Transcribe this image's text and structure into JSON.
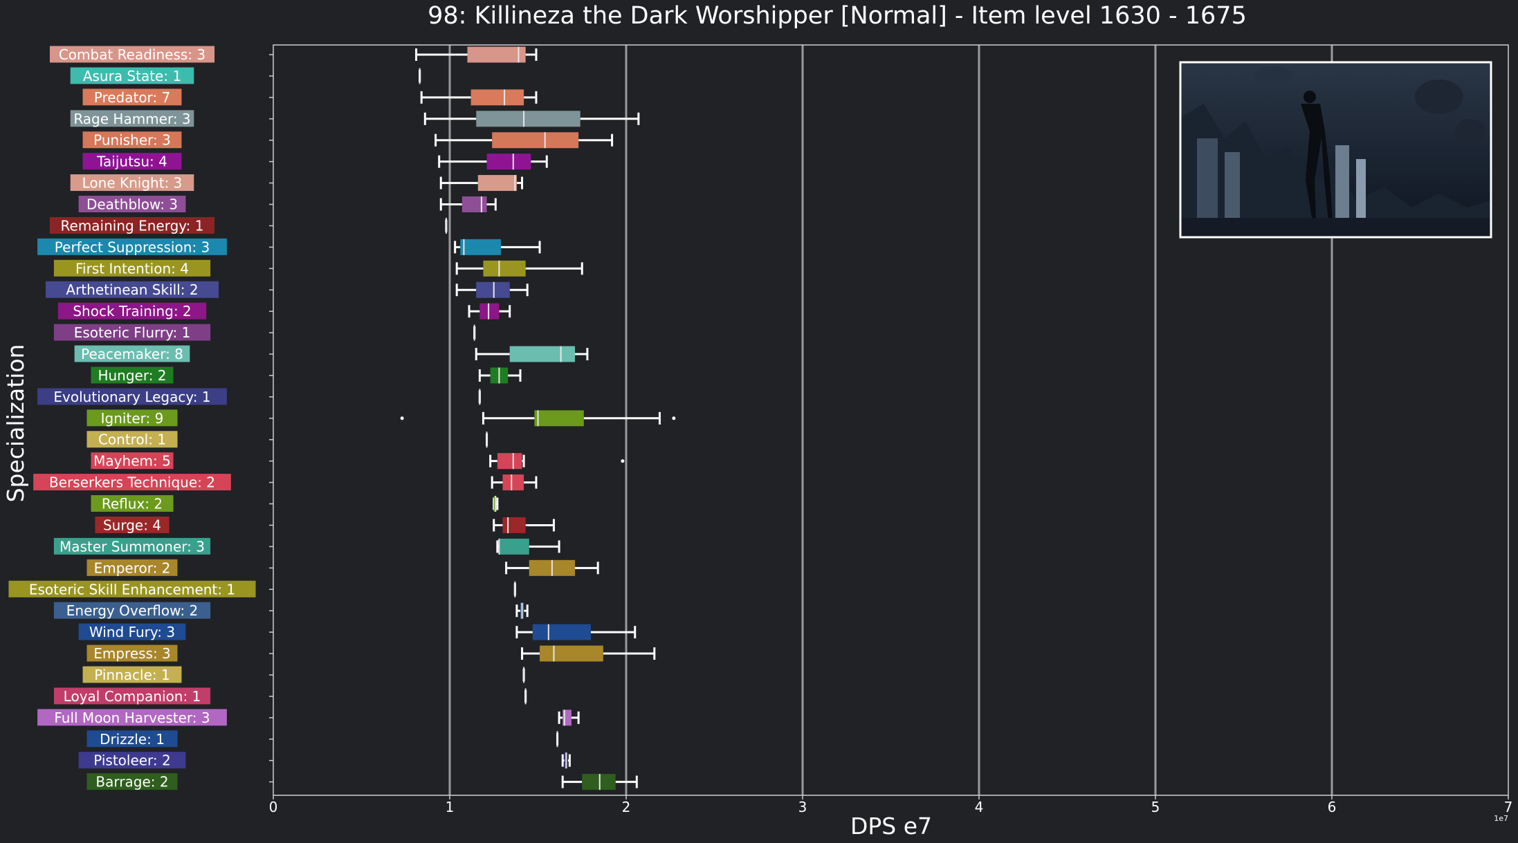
{
  "chart_data": {
    "type": "boxplot",
    "orientation": "horizontal",
    "title": "98: Killineza the Dark Worshipper [Normal] - Item level 1630 - 1675",
    "xlabel": "DPS e7",
    "ylabel": "Specialization",
    "x_offset_text": "1e7",
    "xlim": [
      0,
      70000000
    ],
    "x_ticks": [
      0,
      10000000,
      20000000,
      30000000,
      40000000,
      50000000,
      60000000,
      70000000
    ],
    "x_tick_labels": [
      "0",
      "1",
      "2",
      "3",
      "4",
      "5",
      "6",
      "7"
    ],
    "grid": "vertical",
    "inset_image": "boss-screenshot",
    "series": [
      {
        "label": "Combat Readiness: 3",
        "color": "#d8958a",
        "whislo": 8100000,
        "q1": 11000000,
        "med": 13900000,
        "q3": 14300000,
        "whishi": 14900000,
        "fliers": []
      },
      {
        "label": "Asura State: 1",
        "color": "#3dbcae",
        "whislo": 8300000,
        "q1": 8300000,
        "med": 8300000,
        "q3": 8300000,
        "whishi": 8300000,
        "fliers": []
      },
      {
        "label": "Predator: 7",
        "color": "#d97a5b",
        "whislo": 8400000,
        "q1": 11200000,
        "med": 13100000,
        "q3": 14200000,
        "whishi": 14900000,
        "fliers": []
      },
      {
        "label": "Rage Hammer: 3",
        "color": "#7f9499",
        "whislo": 8600000,
        "q1": 11500000,
        "med": 14200000,
        "q3": 17400000,
        "whishi": 20700000,
        "fliers": []
      },
      {
        "label": "Punisher: 3",
        "color": "#d57759",
        "whislo": 9200000,
        "q1": 12400000,
        "med": 15400000,
        "q3": 17300000,
        "whishi": 19200000,
        "fliers": []
      },
      {
        "label": "Taijutsu: 4",
        "color": "#8f1494",
        "whislo": 9400000,
        "q1": 12100000,
        "med": 13600000,
        "q3": 14600000,
        "whishi": 15500000,
        "fliers": []
      },
      {
        "label": "Lone Knight: 3",
        "color": "#d89a8a",
        "whislo": 9500000,
        "q1": 11600000,
        "med": 13700000,
        "q3": 13800000,
        "whishi": 14100000,
        "fliers": []
      },
      {
        "label": "Deathblow: 3",
        "color": "#8e4f96",
        "whislo": 9500000,
        "q1": 10700000,
        "med": 11800000,
        "q3": 12100000,
        "whishi": 12600000,
        "fliers": []
      },
      {
        "label": "Remaining Energy: 1",
        "color": "#8b2424",
        "whislo": 9800000,
        "q1": 9800000,
        "med": 9800000,
        "q3": 9800000,
        "whishi": 9800000,
        "fliers": []
      },
      {
        "label": "Perfect Suppression: 3",
        "color": "#1c88ad",
        "whislo": 10300000,
        "q1": 10600000,
        "med": 10800000,
        "q3": 12900000,
        "whishi": 15100000,
        "fliers": []
      },
      {
        "label": "First Intention: 4",
        "color": "#9a9520",
        "whislo": 10400000,
        "q1": 11900000,
        "med": 12800000,
        "q3": 14300000,
        "whishi": 17500000,
        "fliers": []
      },
      {
        "label": "Arthetinean Skill: 2",
        "color": "#464a91",
        "whislo": 10400000,
        "q1": 11500000,
        "med": 12500000,
        "q3": 13400000,
        "whishi": 14400000,
        "fliers": []
      },
      {
        "label": "Shock Training: 2",
        "color": "#8d1688",
        "whislo": 11100000,
        "q1": 11700000,
        "med": 12200000,
        "q3": 12800000,
        "whishi": 13400000,
        "fliers": []
      },
      {
        "label": "Esoteric Flurry: 1",
        "color": "#7f3f86",
        "whislo": 11400000,
        "q1": 11400000,
        "med": 11400000,
        "q3": 11400000,
        "whishi": 11400000,
        "fliers": []
      },
      {
        "label": "Peacemaker: 8",
        "color": "#6bbdb0",
        "whislo": 11500000,
        "q1": 13400000,
        "med": 16300000,
        "q3": 17100000,
        "whishi": 17800000,
        "fliers": []
      },
      {
        "label": "Hunger: 2",
        "color": "#1f7d21",
        "whislo": 11700000,
        "q1": 12300000,
        "med": 12800000,
        "q3": 13300000,
        "whishi": 14000000,
        "fliers": []
      },
      {
        "label": "Evolutionary Legacy: 1",
        "color": "#3c3e86",
        "whislo": 11700000,
        "q1": 11700000,
        "med": 11700000,
        "q3": 11700000,
        "whishi": 11700000,
        "fliers": []
      },
      {
        "label": "Igniter: 9",
        "color": "#6b9a1c",
        "whislo": 11900000,
        "q1": 14800000,
        "med": 15000000,
        "q3": 17600000,
        "whishi": 21900000,
        "fliers": [
          7300000,
          22700000
        ]
      },
      {
        "label": "Control: 1",
        "color": "#c4b050",
        "whislo": 12100000,
        "q1": 12100000,
        "med": 12100000,
        "q3": 12100000,
        "whishi": 12100000,
        "fliers": []
      },
      {
        "label": "Mayhem: 5",
        "color": "#d54457",
        "whislo": 12300000,
        "q1": 12700000,
        "med": 13600000,
        "q3": 14100000,
        "whishi": 14200000,
        "fliers": [
          19800000
        ]
      },
      {
        "label": "Berserkers Technique: 2",
        "color": "#d54457",
        "whislo": 12400000,
        "q1": 13000000,
        "med": 13500000,
        "q3": 14200000,
        "whishi": 14900000,
        "fliers": []
      },
      {
        "label": "Reflux: 2",
        "color": "#6b9a1c",
        "whislo": 12500000,
        "q1": 12500000,
        "med": 12600000,
        "q3": 12600000,
        "whishi": 12700000,
        "fliers": []
      },
      {
        "label": "Surge: 4",
        "color": "#9a2828",
        "whislo": 12500000,
        "q1": 13000000,
        "med": 13300000,
        "q3": 14300000,
        "whishi": 15900000,
        "fliers": []
      },
      {
        "label": "Master Summoner: 3",
        "color": "#3aa08e",
        "whislo": 12700000,
        "q1": 12800000,
        "med": 12800000,
        "q3": 14500000,
        "whishi": 16200000,
        "fliers": []
      },
      {
        "label": "Emperor: 2",
        "color": "#a8862a",
        "whislo": 13200000,
        "q1": 14500000,
        "med": 15800000,
        "q3": 17100000,
        "whishi": 18400000,
        "fliers": []
      },
      {
        "label": "Esoteric Skill Enhancement: 1",
        "color": "#9a9520",
        "whislo": 13700000,
        "q1": 13700000,
        "med": 13700000,
        "q3": 13700000,
        "whishi": 13700000,
        "fliers": []
      },
      {
        "label": "Energy Overflow: 2",
        "color": "#3b5f8f",
        "whislo": 13800000,
        "q1": 14000000,
        "med": 14100000,
        "q3": 14200000,
        "whishi": 14400000,
        "fliers": []
      },
      {
        "label": "Wind Fury: 3",
        "color": "#1f4b92",
        "whislo": 13800000,
        "q1": 14700000,
        "med": 15600000,
        "q3": 18000000,
        "whishi": 20500000,
        "fliers": []
      },
      {
        "label": "Empress: 3",
        "color": "#a8862a",
        "whislo": 14100000,
        "q1": 15100000,
        "med": 15900000,
        "q3": 18700000,
        "whishi": 21600000,
        "fliers": []
      },
      {
        "label": "Pinnacle: 1",
        "color": "#c4b050",
        "whislo": 14200000,
        "q1": 14200000,
        "med": 14200000,
        "q3": 14200000,
        "whishi": 14200000,
        "fliers": []
      },
      {
        "label": "Loyal Companion: 1",
        "color": "#c23d6a",
        "whislo": 14300000,
        "q1": 14300000,
        "med": 14300000,
        "q3": 14300000,
        "whishi": 14300000,
        "fliers": []
      },
      {
        "label": "Full Moon Harvester: 3",
        "color": "#b267c2",
        "whislo": 16200000,
        "q1": 16400000,
        "med": 16500000,
        "q3": 16900000,
        "whishi": 17300000,
        "fliers": []
      },
      {
        "label": "Drizzle: 1",
        "color": "#1f4b92",
        "whislo": 16100000,
        "q1": 16100000,
        "med": 16100000,
        "q3": 16100000,
        "whishi": 16100000,
        "fliers": []
      },
      {
        "label": "Pistoleer: 2",
        "color": "#3d3a8f",
        "whislo": 16400000,
        "q1": 16500000,
        "med": 16600000,
        "q3": 16700000,
        "whishi": 16800000,
        "fliers": []
      },
      {
        "label": "Barrage: 2",
        "color": "#2f5e1e",
        "whislo": 16400000,
        "q1": 17500000,
        "med": 18500000,
        "q3": 19400000,
        "whishi": 20600000,
        "fliers": []
      }
    ]
  }
}
